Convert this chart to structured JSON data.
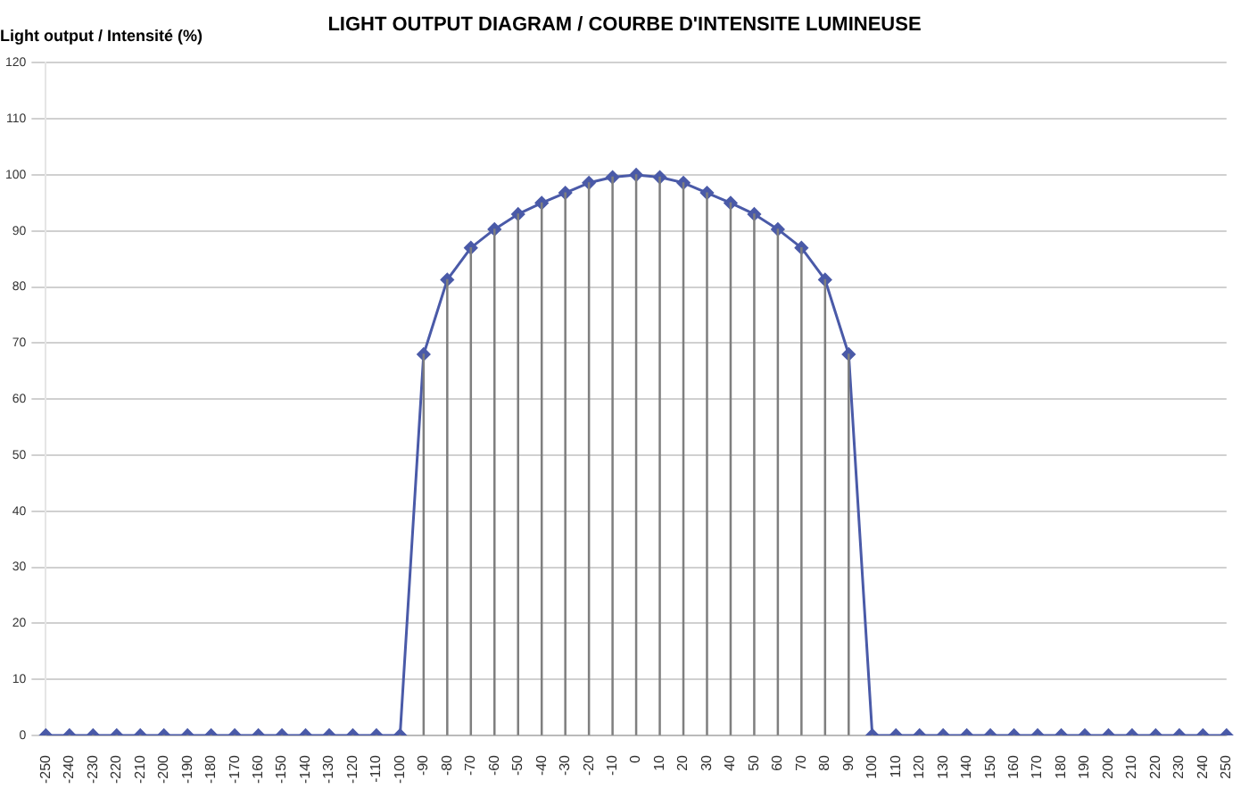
{
  "chart_data": {
    "type": "line",
    "title": "LIGHT OUTPUT DIAGRAM / COURBE D'INTENSITE LUMINEUSE",
    "ylabel": "Light output / Intensité (%)",
    "categories": [
      "-250",
      "-240",
      "-230",
      "-220",
      "-210",
      "-200",
      "-190",
      "-180",
      "-170",
      "-160",
      "-150",
      "-140",
      "-130",
      "-120",
      "-110",
      "-100",
      "-90",
      "-80",
      "-70",
      "-60",
      "-50",
      "-40",
      "-30",
      "-20",
      "-10",
      "0",
      "10",
      "20",
      "30",
      "40",
      "50",
      "60",
      "70",
      "80",
      "90",
      "100",
      "110",
      "120",
      "130",
      "140",
      "150",
      "160",
      "170",
      "180",
      "190",
      "200",
      "210",
      "220",
      "230",
      "240",
      "250"
    ],
    "series": [
      {
        "type": "bar",
        "color": "#7f7f7f",
        "values": [
          0,
          0,
          0,
          0,
          0,
          0,
          0,
          0,
          0,
          0,
          0,
          0,
          0,
          0,
          0,
          0,
          68,
          81.3,
          87,
          90.3,
          93,
          95,
          96.8,
          98.6,
          99.6,
          100,
          99.6,
          98.6,
          96.8,
          95,
          93,
          90.3,
          87,
          81.3,
          68,
          0,
          0,
          0,
          0,
          0,
          0,
          0,
          0,
          0,
          0,
          0,
          0,
          0,
          0,
          0,
          0
        ]
      },
      {
        "color": "#4a5aa8",
        "values": [
          0,
          0,
          0,
          0,
          0,
          0,
          0,
          0,
          0,
          0,
          0,
          0,
          0,
          0,
          0,
          0,
          68,
          81.3,
          87,
          90.3,
          93,
          95,
          96.8,
          98.6,
          99.6,
          100,
          99.6,
          98.6,
          96.8,
          95,
          93,
          90.3,
          87,
          81.3,
          68,
          0,
          0,
          0,
          0,
          0,
          0,
          0,
          0,
          0,
          0,
          0,
          0,
          0,
          0,
          0,
          0
        ]
      }
    ],
    "ylim": [
      0,
      120
    ],
    "yticks": [
      0,
      10,
      20,
      30,
      40,
      50,
      60,
      70,
      80,
      90,
      100,
      110,
      120
    ],
    "grid": "y",
    "legend": false,
    "marker": "diamond",
    "line_style": "solid"
  }
}
